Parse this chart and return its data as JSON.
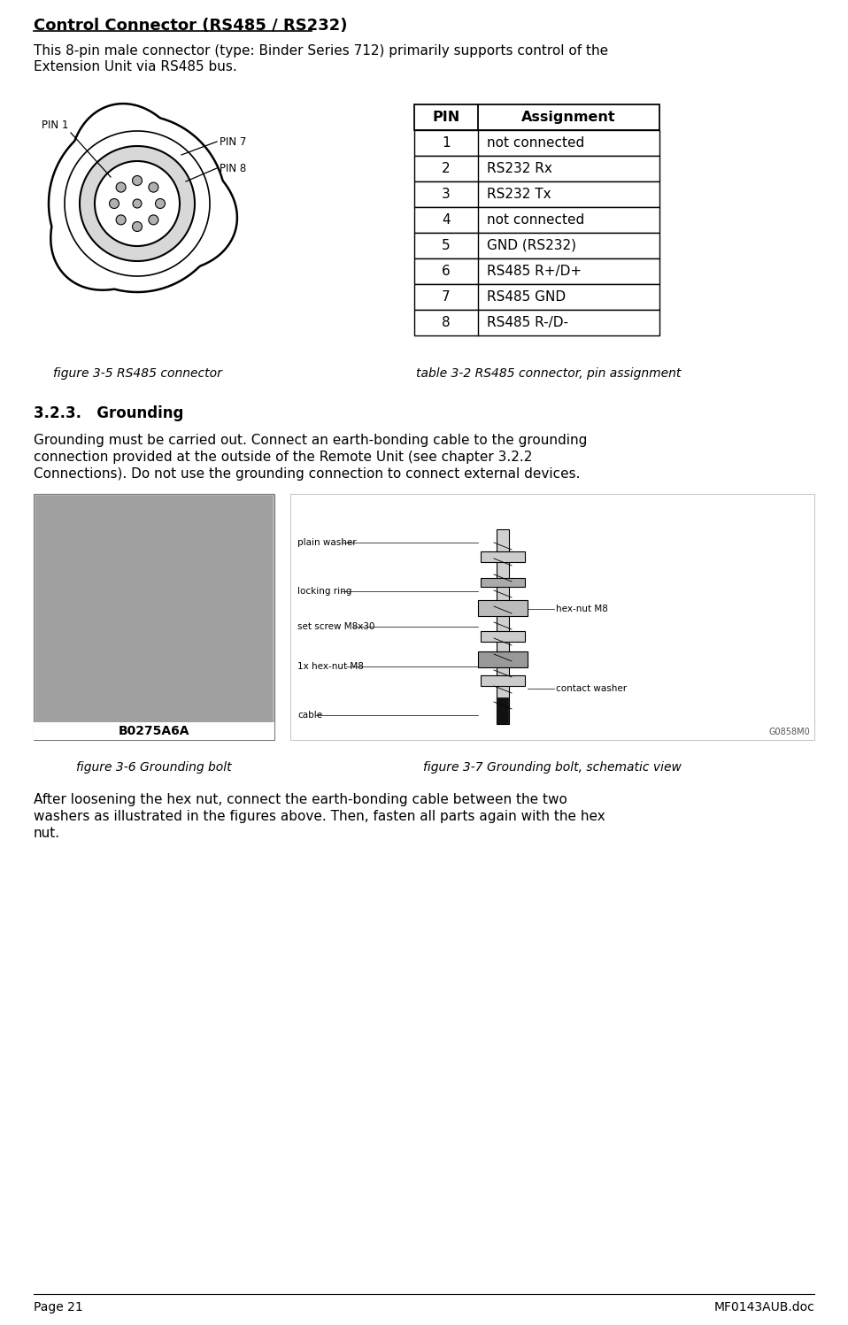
{
  "title": "Control Connector (RS485 / RS232)",
  "intro_line1": "This 8-pin male connector (type: Binder Series 712) primarily supports control of the",
  "intro_line2": "Extension Unit via RS485 bus.",
  "table_headers": [
    "PIN",
    "Assignment"
  ],
  "table_rows": [
    [
      "1",
      "not connected"
    ],
    [
      "2",
      "RS232 Rx"
    ],
    [
      "3",
      "RS232 Tx"
    ],
    [
      "4",
      "not connected"
    ],
    [
      "5",
      "GND (RS232)"
    ],
    [
      "6",
      "RS485 R+/D+"
    ],
    [
      "7",
      "RS485 GND"
    ],
    [
      "8",
      "RS485 R-/D-"
    ]
  ],
  "fig_label_connector": "figure 3-5 RS485 connector",
  "fig_label_table": "table 3-2 RS485 connector, pin assignment",
  "section_title": "3.2.3.   Grounding",
  "grounding_line1": "Grounding must be carried out. Connect an earth-bonding cable to the grounding",
  "grounding_line2": "connection provided at the outside of the Remote Unit (see chapter 3.2.2",
  "grounding_line3": "Connections). Do not use the grounding connection to connect external devices.",
  "grounding_italic_word": "3.2.2",
  "grounding_italic_word2": "Connections",
  "fig_label_bolt": "figure 3-6 Grounding bolt",
  "fig_label_schematic": "figure 3-7 Grounding bolt, schematic view",
  "bolt_label": "B0275A6A",
  "schematic_id": "G0858M0",
  "after_line1": "After loosening the hex nut, connect the earth-bonding cable between the two",
  "after_line2": "washers as illustrated in the figures above. Then, fasten all parts again with the hex",
  "after_line3": "nut.",
  "footer_left": "Page 21",
  "footer_right": "MF0143AUB.doc",
  "bg_color": "#ffffff",
  "text_color": "#000000",
  "schema_annots_left": [
    [
      55,
      "plain washer"
    ],
    [
      110,
      "locking ring"
    ],
    [
      150,
      "set screw M8x30"
    ],
    [
      195,
      "1x hex-nut M8"
    ],
    [
      250,
      "cable"
    ]
  ],
  "schema_annots_right": [
    [
      130,
      "hex-nut M8"
    ],
    [
      220,
      "contact washer"
    ]
  ]
}
